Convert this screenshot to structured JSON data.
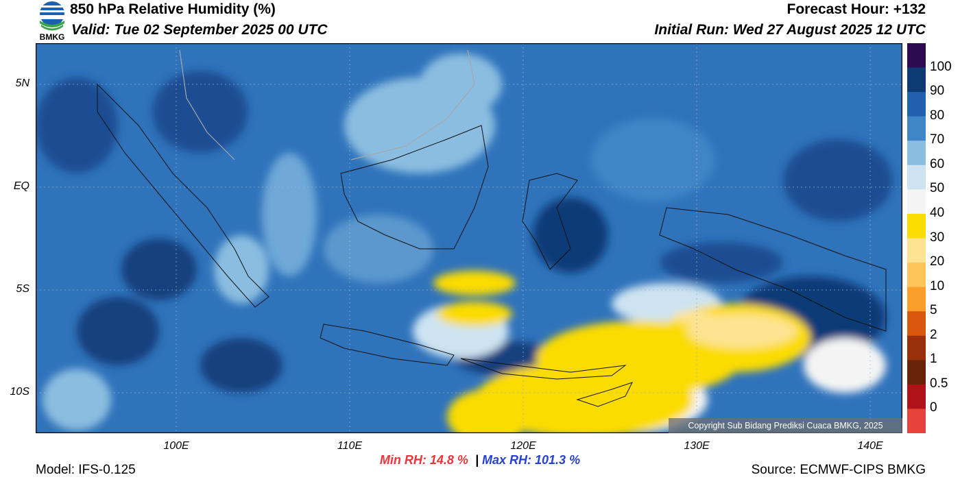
{
  "header": {
    "title": "850 hPa Relative Humidity (%)",
    "valid": "Valid: Tue 02 September 2025 00 UTC",
    "forecast_hour": "Forecast Hour: +132",
    "initial_run": "Initial Run: Wed 27 August 2025 12 UTC"
  },
  "logo": {
    "text": "BMKG",
    "icon": "bmkg-logo-icon"
  },
  "map": {
    "lat_labels": [
      "5N",
      "EQ",
      "5S",
      "10S"
    ],
    "lon_labels": [
      "100E",
      "110E",
      "120E",
      "130E",
      "140E"
    ]
  },
  "colorbar": {
    "labels": [
      "100",
      "90",
      "80",
      "70",
      "60",
      "50",
      "40",
      "30",
      "20",
      "10",
      "5",
      "2",
      "1",
      "0.5",
      "0"
    ],
    "colors": [
      "#2e0a52",
      "#0d3a73",
      "#2060ad",
      "#3f86c6",
      "#8bbde0",
      "#cde3f1",
      "#f4f4f4",
      "#fbdc00",
      "#fde391",
      "#ffc55a",
      "#fb9e2b",
      "#d9560d",
      "#9a300b",
      "#6a2308",
      "#b0121a",
      "#e8433a"
    ]
  },
  "stats": {
    "min_rh": "Min RH:  14.8 %",
    "separator": "|",
    "max_rh": "Max RH: 101.3 %"
  },
  "footer": {
    "model": "Model: IFS-0.125",
    "source": "Source: ECMWF-CIPS BMKG",
    "copyright": "Copyright Sub Bidang Prediksi Cuaca BMKG, 2025"
  }
}
